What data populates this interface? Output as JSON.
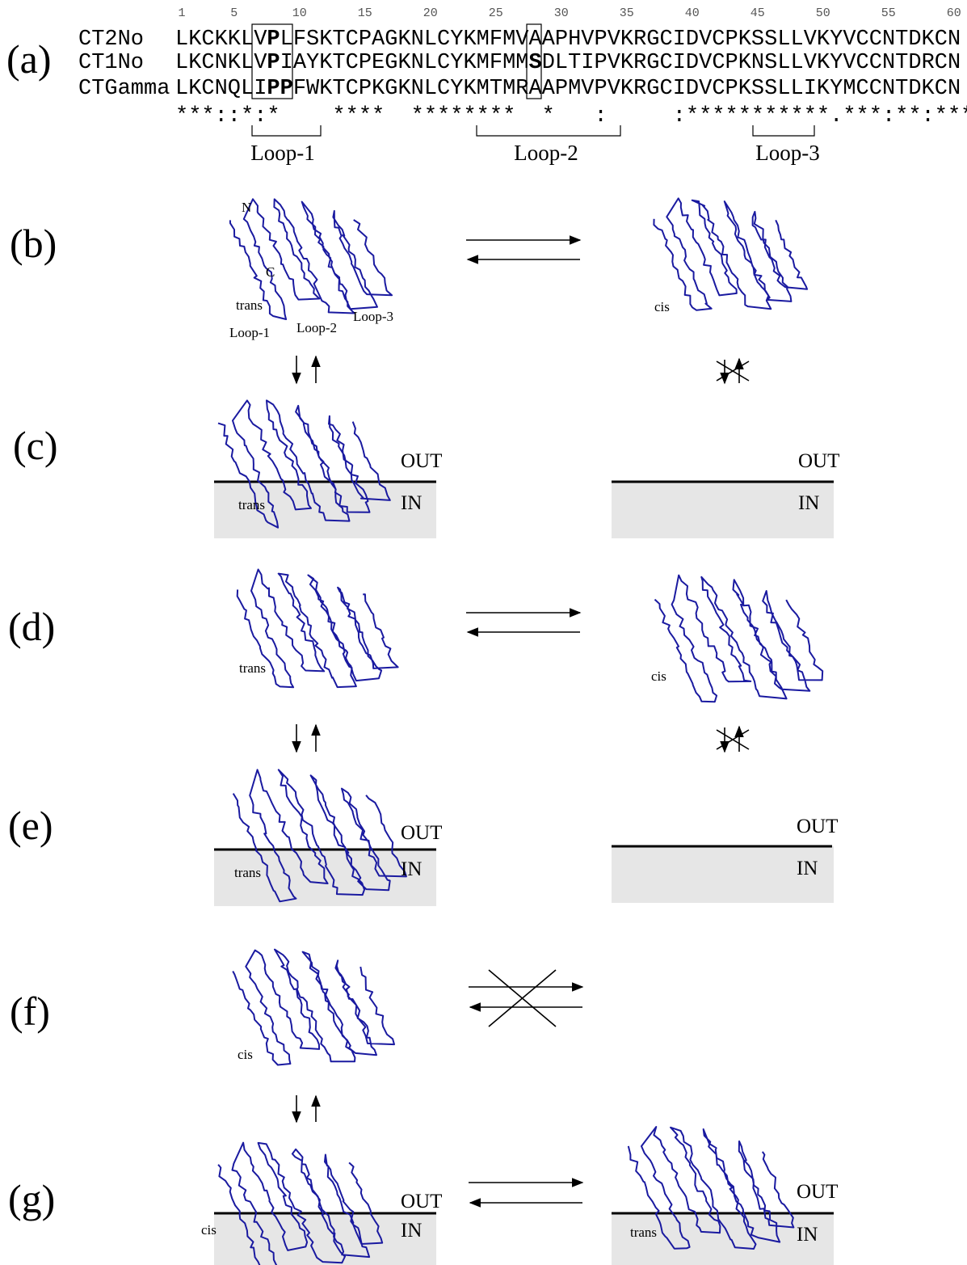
{
  "panel_labels": [
    "(a)",
    "(b)",
    "(c)",
    "(d)",
    "(e)",
    "(f)",
    "(g)"
  ],
  "alignment": {
    "positions": [
      1,
      5,
      10,
      15,
      20,
      25,
      30,
      35,
      40,
      45,
      50,
      55,
      60
    ],
    "rows": [
      {
        "name": "CT2No",
        "segments": [
          "LKCKKLV",
          "P",
          "LFSKTCPAGKNLCYKMFMVAAPHVPVKRGCIDVCPKSSLLVKYVCCNTDKCN"
        ]
      },
      {
        "name": "CT1No",
        "segments": [
          "LKCNKLV",
          "P",
          "IAYKTCPEGKNLCYKMFMM",
          "S",
          "DLTIPVKRGCIDVCPKNSLLVKYVCCNTDRCN"
        ]
      },
      {
        "name": "CTGamma",
        "segments": [
          "LKCNQLI",
          "PP",
          "FWKTCPKGKNLCYKMTMRAAPMVPVKRGCIDVCPKSSLLIKYMCCNTDKCN"
        ]
      }
    ],
    "conservation": "***::*:*    ****  ********  *   :     :***********.***:**:*****:**",
    "loops": [
      "Loop-1",
      "Loop-2",
      "Loop-3"
    ]
  },
  "b": {
    "n_terminus": "N",
    "c_terminus": "C",
    "left_state": "trans",
    "loops": [
      "Loop-1",
      "Loop-2",
      "Loop-3"
    ],
    "right_state": "cis"
  },
  "c": {
    "left": {
      "state": "trans",
      "out": "OUT",
      "in": "IN"
    },
    "right": {
      "out": "OUT",
      "in": "IN"
    }
  },
  "d": {
    "left_state": "trans",
    "right_state": "cis"
  },
  "e": {
    "left": {
      "state": "trans",
      "out": "OUT",
      "in": "IN"
    },
    "right": {
      "out": "OUT",
      "in": "IN"
    }
  },
  "f": {
    "left_state": "cis"
  },
  "g": {
    "left": {
      "state": "cis",
      "out": "OUT",
      "in": "IN"
    },
    "right": {
      "state": "trans",
      "out": "OUT",
      "in": "IN"
    }
  }
}
